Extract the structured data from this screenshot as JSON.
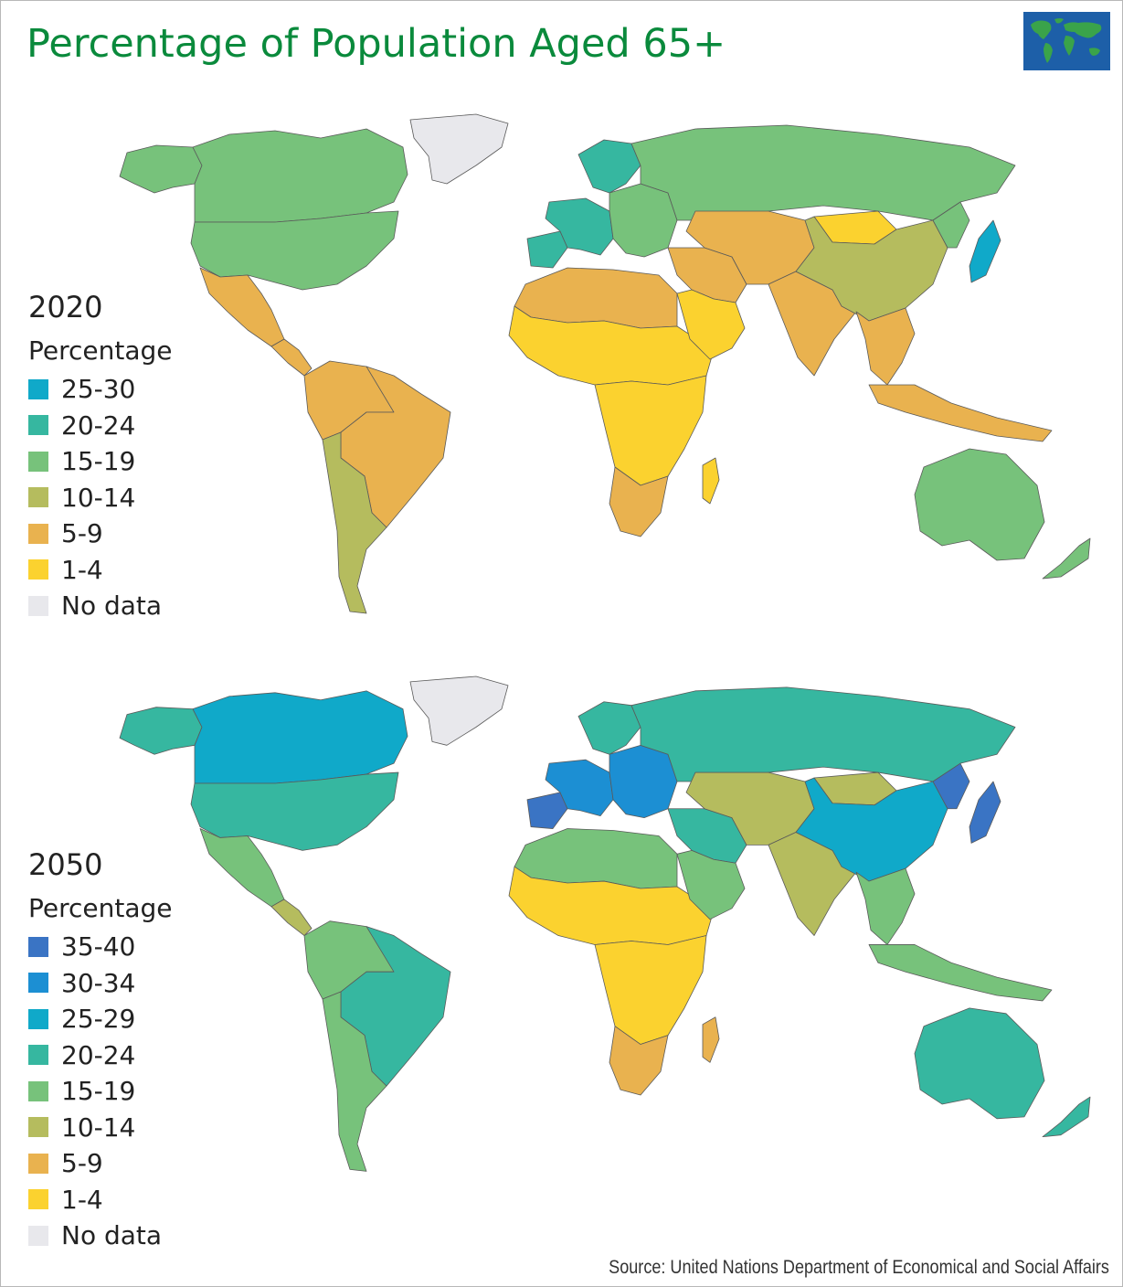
{
  "title": "Percentage of Population Aged 65+",
  "source": "Source: United Nations Department of Economical and Social Affairs",
  "icons": {
    "corner": "world-map-icon"
  },
  "colors": {
    "35-40": "#3a74c4",
    "30-34": "#1c8fd3",
    "25-29": "#10a9c9",
    "25-30": "#10a9c9",
    "20-24": "#36b7a0",
    "15-19": "#77c27b",
    "10-14": "#b5bc5e",
    "5-9": "#e9b24f",
    "1-4": "#fbd22f",
    "nodata": "#e8e8ec"
  },
  "maps": [
    {
      "year": "2020",
      "legend_title": "Percentage",
      "legend": [
        {
          "label": "25-30",
          "color": "#10a9c9"
        },
        {
          "label": "20-24",
          "color": "#36b7a0"
        },
        {
          "label": "15-19",
          "color": "#77c27b"
        },
        {
          "label": "10-14",
          "color": "#b5bc5e"
        },
        {
          "label": "5-9",
          "color": "#e9b24f"
        },
        {
          "label": "1-4",
          "color": "#fbd22f"
        },
        {
          "label": "No data",
          "color": "#e8e8ec"
        }
      ],
      "regions": {
        "greenland": "#e8e8ec",
        "canada": "#77c27b",
        "alaska": "#77c27b",
        "usa": "#77c27b",
        "mexico": "#e9b24f",
        "central_america": "#e9b24f",
        "south_america_north": "#e9b24f",
        "brazil": "#e9b24f",
        "south_america_south": "#b5bc5e",
        "iberia": "#36b7a0",
        "western_europe": "#36b7a0",
        "scandinavia": "#36b7a0",
        "eastern_europe": "#77c27b",
        "russia": "#77c27b",
        "north_africa": "#e9b24f",
        "sahel_africa": "#fbd22f",
        "central_africa": "#fbd22f",
        "southern_africa": "#e9b24f",
        "madagascar": "#fbd22f",
        "middle_east": "#e9b24f",
        "arabia": "#fbd22f",
        "central_asia": "#e9b24f",
        "india": "#e9b24f",
        "china": "#b5bc5e",
        "mongolia": "#fbd22f",
        "southeast_asia": "#e9b24f",
        "japan": "#10a9c9",
        "korea": "#77c27b",
        "indonesia": "#e9b24f",
        "australia": "#77c27b",
        "new_zealand": "#77c27b"
      }
    },
    {
      "year": "2050",
      "legend_title": "Percentage",
      "legend": [
        {
          "label": "35-40",
          "color": "#3a74c4"
        },
        {
          "label": "30-34",
          "color": "#1c8fd3"
        },
        {
          "label": "25-29",
          "color": "#10a9c9"
        },
        {
          "label": "20-24",
          "color": "#36b7a0"
        },
        {
          "label": "15-19",
          "color": "#77c27b"
        },
        {
          "label": "10-14",
          "color": "#b5bc5e"
        },
        {
          "label": "5-9",
          "color": "#e9b24f"
        },
        {
          "label": "1-4",
          "color": "#fbd22f"
        },
        {
          "label": "No data",
          "color": "#e8e8ec"
        }
      ],
      "regions": {
        "greenland": "#e8e8ec",
        "canada": "#10a9c9",
        "alaska": "#36b7a0",
        "usa": "#36b7a0",
        "mexico": "#77c27b",
        "central_america": "#b5bc5e",
        "south_america_north": "#77c27b",
        "brazil": "#36b7a0",
        "south_america_south": "#77c27b",
        "iberia": "#3a74c4",
        "western_europe": "#1c8fd3",
        "scandinavia": "#36b7a0",
        "eastern_europe": "#1c8fd3",
        "russia": "#36b7a0",
        "north_africa": "#77c27b",
        "sahel_africa": "#fbd22f",
        "central_africa": "#fbd22f",
        "southern_africa": "#e9b24f",
        "madagascar": "#e9b24f",
        "middle_east": "#36b7a0",
        "arabia": "#77c27b",
        "central_asia": "#b5bc5e",
        "india": "#b5bc5e",
        "china": "#10a9c9",
        "mongolia": "#b5bc5e",
        "southeast_asia": "#77c27b",
        "japan": "#3a74c4",
        "korea": "#3a74c4",
        "indonesia": "#77c27b",
        "australia": "#36b7a0",
        "new_zealand": "#36b7a0"
      }
    }
  ]
}
